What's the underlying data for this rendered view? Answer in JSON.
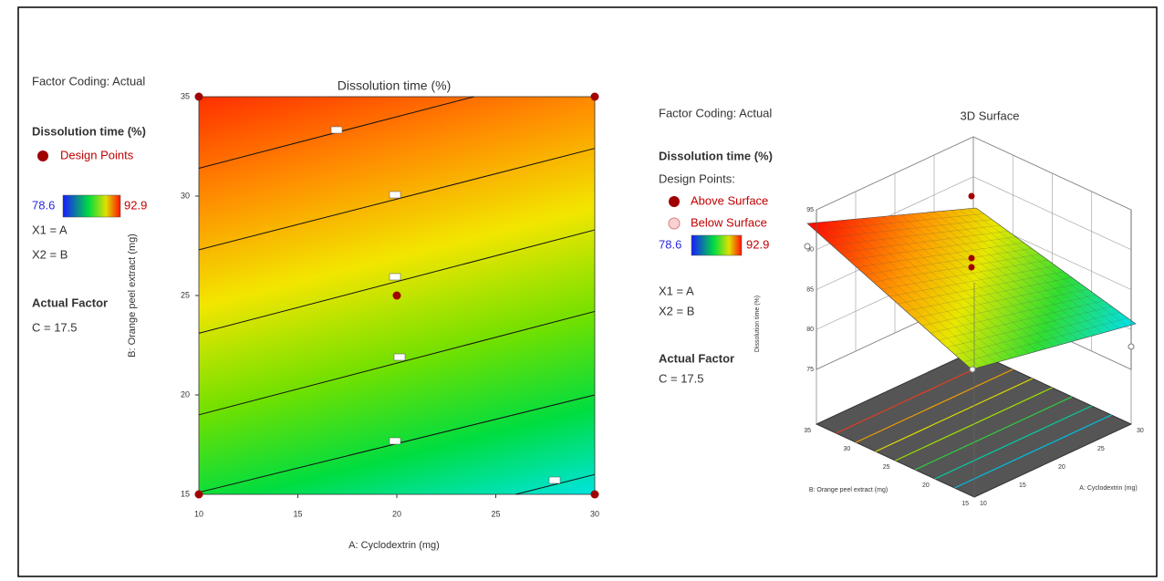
{
  "chart_data": [
    {
      "type": "contour",
      "title": "Dissolution time (%)",
      "xlabel": "A: Cyclodextrin (mg)",
      "ylabel": "B: Orange peel extract (mg)",
      "xlim": [
        10,
        30
      ],
      "ylim": [
        15,
        35
      ],
      "xticks": [
        10,
        15,
        20,
        25,
        30
      ],
      "yticks": [
        15,
        20,
        25,
        30,
        35
      ],
      "contours": [
        {
          "x": [
            10,
            23.9
          ],
          "y": [
            31.4,
            35
          ]
        },
        {
          "x": [
            10,
            30
          ],
          "y": [
            27.3,
            32.4
          ]
        },
        {
          "x": [
            10,
            30
          ],
          "y": [
            23.1,
            28.3
          ]
        },
        {
          "x": [
            10,
            30
          ],
          "y": [
            19.0,
            24.2
          ]
        },
        {
          "x": [
            10,
            30
          ],
          "y": [
            15.1,
            20.0
          ]
        },
        {
          "x": [
            26.0,
            30
          ],
          "y": [
            15,
            16.0
          ]
        }
      ],
      "design_points": {
        "x": [
          10,
          10,
          30,
          30,
          20
        ],
        "y": [
          15,
          35,
          15,
          35,
          25
        ],
        "color": "#a00000"
      },
      "factor_coding": "Factor Coding: Actual",
      "legend_title": "Dissolution time (%)",
      "design_points_label": "Design Points",
      "color_min": 78.6,
      "color_max": 92.9,
      "x1": "X1 = A",
      "x2": "X2 = B",
      "actual_factor_title": "Actual Factor",
      "actual_factor": "C = 17.5"
    },
    {
      "type": "surface",
      "title": "3D Surface",
      "xlabel": "A: Cyclodextrin (mg)",
      "ylabel": "B: Orange peel extract (mg)",
      "zlabel": "Dissolution time (%)",
      "xlim": [
        10,
        30
      ],
      "ylim": [
        15,
        35
      ],
      "zlim": [
        75,
        95
      ],
      "xticks": [
        10,
        15,
        20,
        25,
        30
      ],
      "yticks": [
        15,
        20,
        25,
        30,
        35
      ],
      "zticks": [
        75,
        80,
        85,
        90,
        95
      ],
      "factor_coding": "Factor Coding: Actual",
      "legend_title": "Dissolution time (%)",
      "design_points_title": "Design Points:",
      "above_label": "Above Surface",
      "below_label": "Below Surface",
      "color_min": 78.6,
      "color_max": 92.9,
      "x1": "X1 = A",
      "x2": "X2 = B",
      "actual_factor_title": "Actual Factor",
      "actual_factor": "C = 17.5"
    }
  ]
}
